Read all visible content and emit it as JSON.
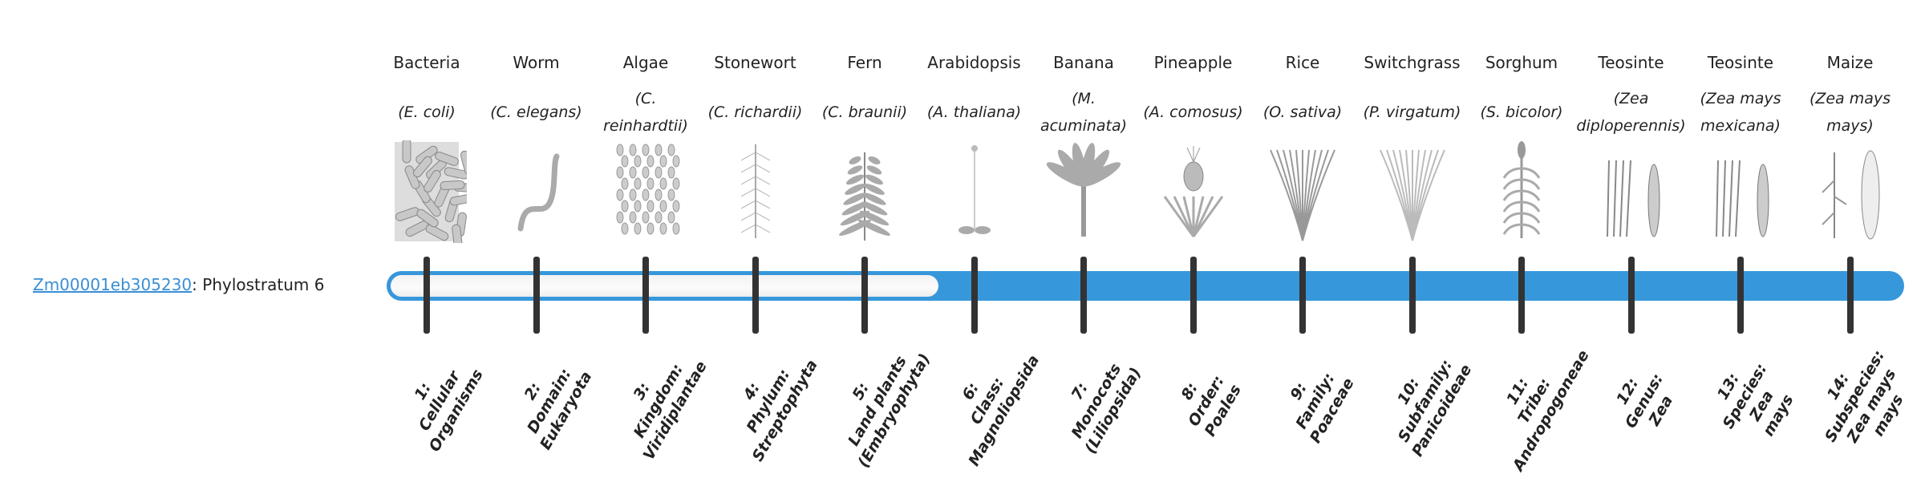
{
  "gene": {
    "id": "Zm00001eb305230",
    "suffix": ": Phylostratum 6",
    "phylostratum": 6
  },
  "colors": {
    "bar": "#3797db",
    "tick": "#333333",
    "link": "#3a8fd6"
  },
  "strata": [
    {
      "common": "Bacteria",
      "sci": "(E. coli)",
      "icon": "bacteria-icon",
      "rank": [
        "1:",
        "Cellular",
        "Organisms"
      ]
    },
    {
      "common": "Worm",
      "sci": "(C. elegans)",
      "icon": "worm-icon",
      "rank": [
        "2:",
        "Domain:",
        "Eukaryota"
      ]
    },
    {
      "common": "Algae",
      "sci": "(C. reinhardtii)",
      "icon": "algae-icon",
      "rank": [
        "3:",
        "Kingdom:",
        "Viridiplantae"
      ]
    },
    {
      "common": "Stonewort",
      "sci": "(C. richardii)",
      "icon": "stonewort-icon",
      "rank": [
        "4:",
        "Phylum:",
        "Streptophyta"
      ]
    },
    {
      "common": "Fern",
      "sci": "(C. braunii)",
      "icon": "fern-icon",
      "rank": [
        "5:",
        "Land plants",
        "(Embryophyta)"
      ]
    },
    {
      "common": "Arabidopsis",
      "sci": "(A. thaliana)",
      "icon": "arabidopsis-icon",
      "rank": [
        "6:",
        "Class:",
        "Magnoliopsida"
      ]
    },
    {
      "common": "Banana",
      "sci": "(M. acuminata)",
      "icon": "banana-icon",
      "rank": [
        "7:",
        "Monocots",
        "(Liliopsida)"
      ]
    },
    {
      "common": "Pineapple",
      "sci": "(A. comosus)",
      "icon": "pineapple-icon",
      "rank": [
        "8:",
        "Order:",
        "Poales"
      ]
    },
    {
      "common": "Rice",
      "sci": "(O. sativa)",
      "icon": "rice-icon",
      "rank": [
        "9:",
        "Family:",
        "Poaceae"
      ]
    },
    {
      "common": "Switchgrass",
      "sci": "(P. virgatum)",
      "icon": "switchgrass-icon",
      "rank": [
        "10:",
        "Subfamily:",
        "Panicoideae"
      ]
    },
    {
      "common": "Sorghum",
      "sci": "(S. bicolor)",
      "icon": "sorghum-icon",
      "rank": [
        "11:",
        "Tribe:",
        "Andropogoneae"
      ]
    },
    {
      "common": "Teosinte",
      "sci": "(Zea diploperennis)",
      "icon": "teosinte-icon",
      "rank": [
        "12:",
        "Genus:",
        "Zea"
      ]
    },
    {
      "common": "Teosinte",
      "sci": "(Zea mays mexicana)",
      "icon": "teosinte-icon",
      "rank": [
        "13:",
        "Species:",
        "Zea",
        "mays"
      ]
    },
    {
      "common": "Maize",
      "sci": "(Zea mays mays)",
      "icon": "maize-icon",
      "rank": [
        "14:",
        "Subspecies:",
        "Zea mays",
        "mays"
      ]
    }
  ]
}
